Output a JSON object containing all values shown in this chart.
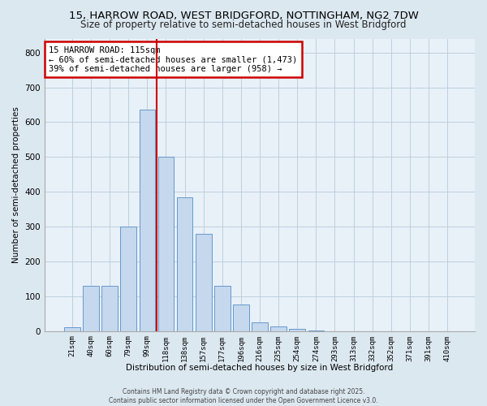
{
  "title1": "15, HARROW ROAD, WEST BRIDGFORD, NOTTINGHAM, NG2 7DW",
  "title2": "Size of property relative to semi-detached houses in West Bridgford",
  "xlabel": "Distribution of semi-detached houses by size in West Bridgford",
  "ylabel": "Number of semi-detached properties",
  "categories": [
    "21sqm",
    "40sqm",
    "60sqm",
    "79sqm",
    "99sqm",
    "118sqm",
    "138sqm",
    "157sqm",
    "177sqm",
    "196sqm",
    "216sqm",
    "235sqm",
    "254sqm",
    "274sqm",
    "293sqm",
    "313sqm",
    "332sqm",
    "352sqm",
    "371sqm",
    "391sqm",
    "410sqm"
  ],
  "values": [
    10,
    130,
    130,
    300,
    635,
    500,
    385,
    280,
    130,
    75,
    25,
    13,
    5,
    2,
    0,
    0,
    0,
    0,
    0,
    0,
    0
  ],
  "bar_color": "#c5d8ed",
  "bar_edge_color": "#6699cc",
  "vline_x_idx": 5,
  "vline_color": "#cc0000",
  "annotation_title": "15 HARROW ROAD: 115sqm",
  "annotation_line1": "← 60% of semi-detached houses are smaller (1,473)",
  "annotation_line2": "39% of semi-detached houses are larger (958) →",
  "annotation_box_color": "#cc0000",
  "ylim": [
    0,
    840
  ],
  "yticks": [
    0,
    100,
    200,
    300,
    400,
    500,
    600,
    700,
    800
  ],
  "footer1": "Contains HM Land Registry data © Crown copyright and database right 2025.",
  "footer2": "Contains public sector information licensed under the Open Government Licence v3.0.",
  "bg_color": "#dce8f0",
  "plot_bg_color": "#e8f0f8",
  "title_fontsize": 9.5,
  "subtitle_fontsize": 8.5,
  "grid_color": "#b8ccd8"
}
